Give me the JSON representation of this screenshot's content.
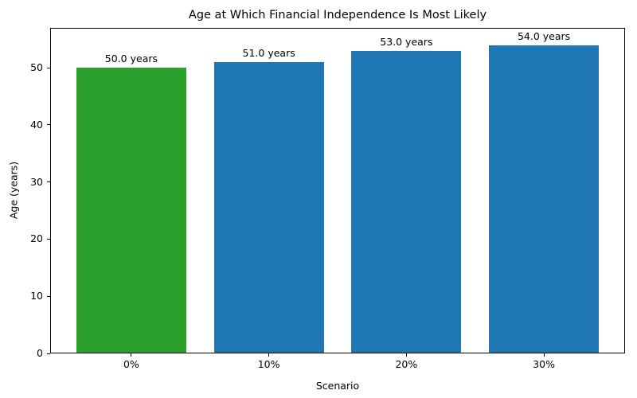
{
  "chart_data": {
    "type": "bar",
    "title": "Age at Which Financial Independence Is Most Likely",
    "xlabel": "Scenario",
    "ylabel": "Age (years)",
    "categories": [
      "0%",
      "10%",
      "20%",
      "30%"
    ],
    "values": [
      50.0,
      51.0,
      53.0,
      54.0
    ],
    "bar_labels": [
      "50.0 years",
      "51.0 years",
      "53.0 years",
      "54.0 years"
    ],
    "bar_colors": [
      "#2ca02c",
      "#1f77b4",
      "#1f77b4",
      "#1f77b4"
    ],
    "yticks": [
      0,
      10,
      20,
      30,
      40,
      50
    ],
    "ylim": [
      0,
      57
    ],
    "grid": false,
    "legend": "none",
    "background_color": "#ffffff",
    "text_color": "#000000"
  }
}
